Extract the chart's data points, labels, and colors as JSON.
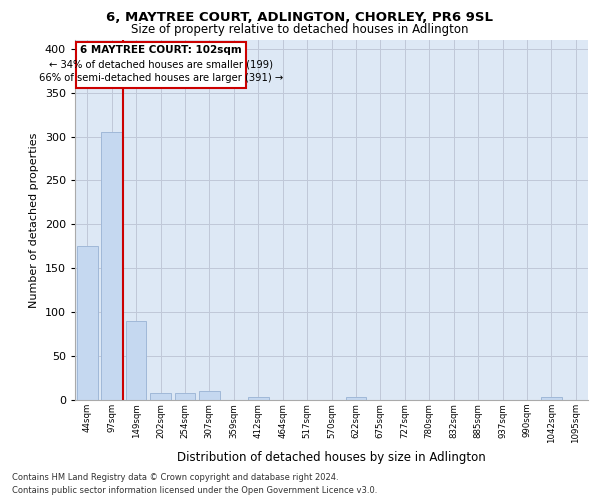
{
  "title": "6, MAYTREE COURT, ADLINGTON, CHORLEY, PR6 9SL",
  "subtitle": "Size of property relative to detached houses in Adlington",
  "xlabel": "Distribution of detached houses by size in Adlington",
  "ylabel": "Number of detached properties",
  "footer_line1": "Contains HM Land Registry data © Crown copyright and database right 2024.",
  "footer_line2": "Contains public sector information licensed under the Open Government Licence v3.0.",
  "bar_labels": [
    "44sqm",
    "97sqm",
    "149sqm",
    "202sqm",
    "254sqm",
    "307sqm",
    "359sqm",
    "412sqm",
    "464sqm",
    "517sqm",
    "570sqm",
    "622sqm",
    "675sqm",
    "727sqm",
    "780sqm",
    "832sqm",
    "885sqm",
    "937sqm",
    "990sqm",
    "1042sqm",
    "1095sqm"
  ],
  "bar_values": [
    175,
    305,
    90,
    8,
    8,
    10,
    0,
    3,
    0,
    0,
    0,
    3,
    0,
    0,
    0,
    0,
    0,
    0,
    0,
    3,
    0
  ],
  "bar_color": "#c5d8f0",
  "bar_edgecolor": "#a0b8d8",
  "property_sqm": 102,
  "property_label": "6 MAYTREE COURT: 102sqm",
  "annotation_line1": "← 34% of detached houses are smaller (199)",
  "annotation_line2": "66% of semi-detached houses are larger (391) →",
  "annotation_box_color": "#ffffff",
  "annotation_box_edgecolor": "#cc0000",
  "vline_color": "#cc0000",
  "ylim": [
    0,
    410
  ],
  "yticks": [
    0,
    50,
    100,
    150,
    200,
    250,
    300,
    350,
    400
  ],
  "grid_color": "#c0c8d8",
  "background_color": "#dde8f5"
}
